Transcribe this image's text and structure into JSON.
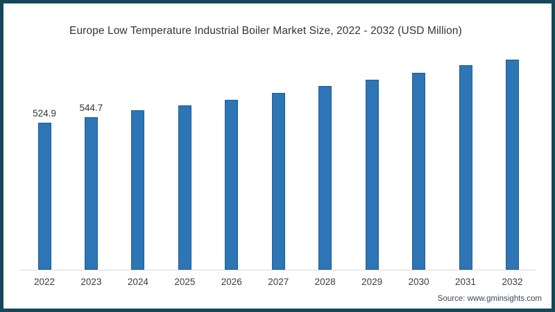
{
  "chart": {
    "title": "Europe Low Temperature Industrial Boiler Market Size, 2022 - 2032 (USD Million)",
    "source": "Source: www.gminsights.com"
  },
  "colors": {
    "bar_fill": "#2E75B5",
    "bar_border": "#1E5C97",
    "frame_border": "#14475A",
    "axis_line": "#D9D9D9",
    "title_text": "#333333",
    "tick_text": "#3D3D3D",
    "source_text": "#3C4A55"
  },
  "chart_data": {
    "type": "bar",
    "title": "Europe Low Temperature Industrial Boiler Market Size, 2022 - 2032 (USD Million)",
    "categories": [
      "2022",
      "2023",
      "2024",
      "2025",
      "2026",
      "2027",
      "2028",
      "2029",
      "2030",
      "2031",
      "2032"
    ],
    "values": [
      524.9,
      544.7,
      570.6,
      589.2,
      609.0,
      633.8,
      658.5,
      680.8,
      705.5,
      731.5,
      752.6
    ],
    "value_labels_shown": [
      "524.9",
      "544.7",
      "",
      "",
      "",
      "",
      "",
      "",
      "",
      "",
      ""
    ],
    "xlabel": "",
    "ylabel": "",
    "units": "USD Million",
    "ylim": [
      0,
      800
    ],
    "y_axis_visible": false,
    "grid": false,
    "legend": false
  }
}
